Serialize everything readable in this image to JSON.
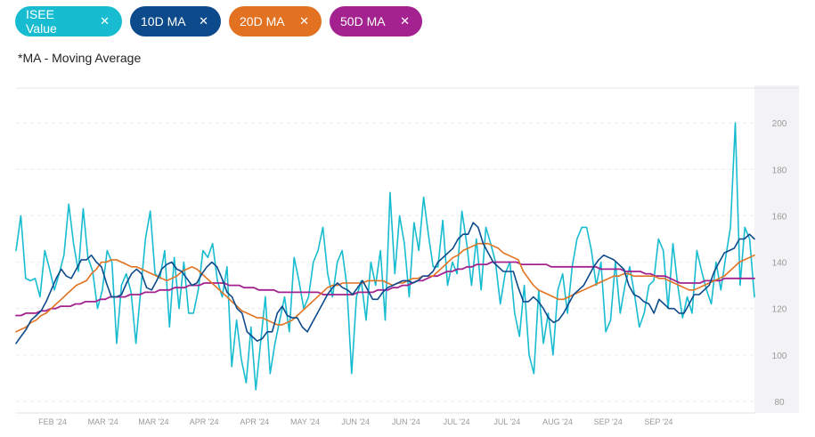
{
  "filters": [
    {
      "label": "ISEE Value",
      "color": "#17bcd1",
      "remove_icon": "close-icon",
      "width": 120
    },
    {
      "label": "10D MA",
      "color": "#0d4a8b",
      "remove_icon": "close-icon",
      "width": 102
    },
    {
      "label": "20D MA",
      "color": "#e27222",
      "remove_icon": "close-icon",
      "width": 104
    },
    {
      "label": "50D MA",
      "color": "#a3228f",
      "remove_icon": "close-icon",
      "width": 104
    }
  ],
  "remove_glyph": "✕",
  "footnote": "*MA - Moving Average",
  "chart_data": {
    "type": "line",
    "x_tick_labels": [
      "FEB '24",
      "MAR '24",
      "MAR '24",
      "APR '24",
      "APR '24",
      "MAY '24",
      "JUN '24",
      "JUN '24",
      "JUL '24",
      "JUL '24",
      "AUG '24",
      "SEP '24",
      "SEP '24"
    ],
    "y_ticks": [
      80,
      100,
      120,
      140,
      160,
      180,
      200
    ],
    "ylim": [
      75,
      215
    ],
    "grid": true,
    "series": [
      {
        "name": "ISEE Value",
        "color": "#17bcd1",
        "width": 1.6,
        "values": [
          145,
          160,
          133,
          132,
          133,
          125,
          145,
          137,
          128,
          135,
          143,
          165,
          148,
          136,
          163,
          142,
          136,
          120,
          128,
          145,
          140,
          105,
          130,
          135,
          127,
          105,
          128,
          150,
          162,
          135,
          133,
          145,
          112,
          142,
          120,
          140,
          118,
          118,
          128,
          145,
          142,
          148,
          132,
          125,
          138,
          95,
          115,
          98,
          88,
          112,
          85,
          105,
          125,
          92,
          105,
          115,
          125,
          110,
          142,
          132,
          120,
          125,
          140,
          145,
          155,
          135,
          125,
          140,
          145,
          130,
          92,
          125,
          132,
          115,
          140,
          130,
          145,
          115,
          170,
          135,
          160,
          148,
          125,
          157,
          145,
          168,
          152,
          138,
          138,
          158,
          130,
          140,
          135,
          162,
          148,
          130,
          150,
          128,
          155,
          148,
          140,
          122,
          135,
          140,
          118,
          108,
          130,
          100,
          92,
          128,
          105,
          118,
          100,
          128,
          135,
          118,
          138,
          150,
          155,
          155,
          145,
          130,
          140,
          110,
          115,
          140,
          118,
          130,
          138,
          126,
          112,
          118,
          130,
          132,
          150,
          145,
          120,
          148,
          130,
          116,
          125,
          118,
          145,
          136,
          128,
          122,
          140,
          128,
          142,
          155,
          200,
          130,
          155,
          150,
          125
        ]
      },
      {
        "name": "10D MA",
        "color": "#0d4a8b",
        "width": 1.6,
        "values": [
          105,
          108,
          111,
          115,
          117,
          119,
          123,
          128,
          133,
          137,
          134,
          133,
          137,
          141,
          141,
          143,
          140,
          138,
          131,
          125,
          125,
          126,
          131,
          135,
          137,
          135,
          129,
          128,
          132,
          137,
          139,
          140,
          137,
          136,
          133,
          130,
          131,
          135,
          138,
          140,
          138,
          133,
          127,
          125,
          120,
          118,
          110,
          108,
          106,
          107,
          110,
          110,
          118,
          121,
          117,
          116,
          116,
          112,
          110,
          114,
          118,
          122,
          126,
          129,
          131,
          129,
          128,
          126,
          129,
          132,
          128,
          124,
          124,
          127,
          129,
          130,
          131,
          132,
          132,
          131,
          132,
          134,
          134,
          136,
          140,
          142,
          144,
          146,
          150,
          152,
          152,
          157,
          155,
          148,
          144,
          140,
          138,
          136,
          136,
          136,
          129,
          123,
          123,
          125,
          123,
          120,
          116,
          114,
          115,
          118,
          122,
          126,
          128,
          130,
          134,
          138,
          141,
          143,
          142,
          141,
          139,
          137,
          130,
          126,
          125,
          123,
          122,
          118,
          124,
          122,
          120,
          120,
          118,
          118,
          122,
          126,
          126,
          128,
          130,
          136,
          140,
          144,
          145,
          146,
          150,
          150,
          152,
          150
        ]
      },
      {
        "name": "20D MA",
        "color": "#e27222",
        "width": 1.6,
        "values": [
          110,
          111,
          112,
          114,
          115,
          117,
          118,
          120,
          122,
          124,
          126,
          128,
          130,
          131,
          132,
          135,
          137,
          140,
          140,
          141,
          141,
          140,
          139,
          138,
          138,
          137,
          136,
          135,
          134,
          133,
          132,
          133,
          134,
          136,
          137,
          138,
          137,
          135,
          133,
          131,
          129,
          127,
          125,
          123,
          121,
          119,
          118,
          117,
          116,
          116,
          115,
          114,
          113,
          113,
          114,
          115,
          117,
          119,
          121,
          123,
          125,
          127,
          129,
          130,
          130,
          131,
          131,
          131,
          131,
          131,
          132,
          132,
          132,
          132,
          131,
          130,
          131,
          131,
          132,
          133,
          133,
          134,
          134,
          134,
          136,
          138,
          140,
          142,
          143,
          145,
          146,
          147,
          148,
          148,
          148,
          147,
          146,
          144,
          143,
          142,
          141,
          136,
          133,
          130,
          128,
          127,
          126,
          125,
          124,
          124,
          125,
          126,
          127,
          128,
          129,
          130,
          131,
          132,
          133,
          134,
          134,
          135,
          135,
          134,
          134,
          134,
          134,
          134,
          133,
          133,
          132,
          131,
          130,
          129,
          128,
          128,
          129,
          130,
          131,
          132,
          133,
          134,
          136,
          138,
          140,
          141,
          142,
          143
        ]
      },
      {
        "name": "50D MA",
        "color": "#a3228f",
        "width": 1.8,
        "values": [
          117,
          117,
          118,
          118,
          118,
          119,
          119,
          120,
          120,
          121,
          121,
          121,
          122,
          122,
          123,
          123,
          123,
          124,
          124,
          125,
          125,
          125,
          125,
          126,
          126,
          126,
          127,
          127,
          127,
          128,
          128,
          128,
          129,
          129,
          129,
          130,
          130,
          130,
          131,
          131,
          131,
          131,
          131,
          130,
          130,
          130,
          129,
          129,
          129,
          128,
          128,
          128,
          128,
          127,
          127,
          127,
          127,
          127,
          127,
          127,
          127,
          127,
          126,
          126,
          126,
          126,
          126,
          126,
          126,
          127,
          127,
          127,
          127,
          128,
          128,
          128,
          129,
          129,
          130,
          130,
          131,
          132,
          132,
          133,
          134,
          134,
          135,
          136,
          136,
          137,
          137,
          138,
          138,
          139,
          139,
          139,
          140,
          140,
          140,
          140,
          140,
          140,
          139,
          139,
          139,
          139,
          139,
          139,
          138,
          138,
          138,
          138,
          138,
          138,
          138,
          138,
          138,
          138,
          137,
          137,
          137,
          137,
          137,
          136,
          136,
          136,
          136,
          135,
          135,
          134,
          134,
          134,
          133,
          132,
          131,
          131,
          131,
          131,
          131,
          132,
          132,
          132,
          132,
          133,
          133,
          133,
          133,
          133,
          133,
          133
        ]
      }
    ]
  }
}
